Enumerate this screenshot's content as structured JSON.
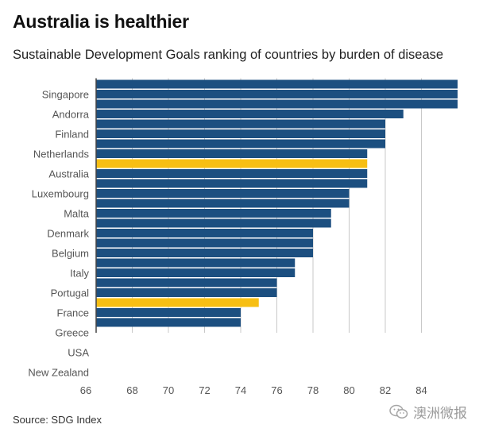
{
  "title": "Australia is healthier",
  "subtitle": "Sustainable Development Goals ranking of countries by burden of disease",
  "source": "Source: SDG Index",
  "watermark": {
    "text": "澳洲微报",
    "icon": "wechat-icon"
  },
  "colors": {
    "bar": "#1c4f80",
    "highlight": "#f7bf13",
    "grid": "#c8c8c8",
    "axis": "#444444",
    "label": "#555555"
  },
  "chart_data": {
    "type": "bar",
    "orientation": "horizontal",
    "xlim": [
      66,
      86
    ],
    "xticks": [
      66,
      68,
      70,
      72,
      74,
      76,
      78,
      80,
      82,
      84
    ],
    "labeled_categories": [
      "Singapore",
      "Andorra",
      "Finland",
      "Netherlands",
      "Australia",
      "Luxembourg",
      "Malta",
      "Denmark",
      "Belgium",
      "Italy",
      "Portugal",
      "France",
      "Greece",
      "USA",
      "New Zealand"
    ],
    "values": [
      86,
      86,
      86,
      83,
      82,
      82,
      82,
      81,
      81,
      81,
      81,
      80,
      80,
      79,
      79,
      78,
      78,
      78,
      77,
      77,
      76,
      76,
      75,
      74,
      74
    ],
    "highlighted_bars": [
      8,
      22
    ]
  }
}
